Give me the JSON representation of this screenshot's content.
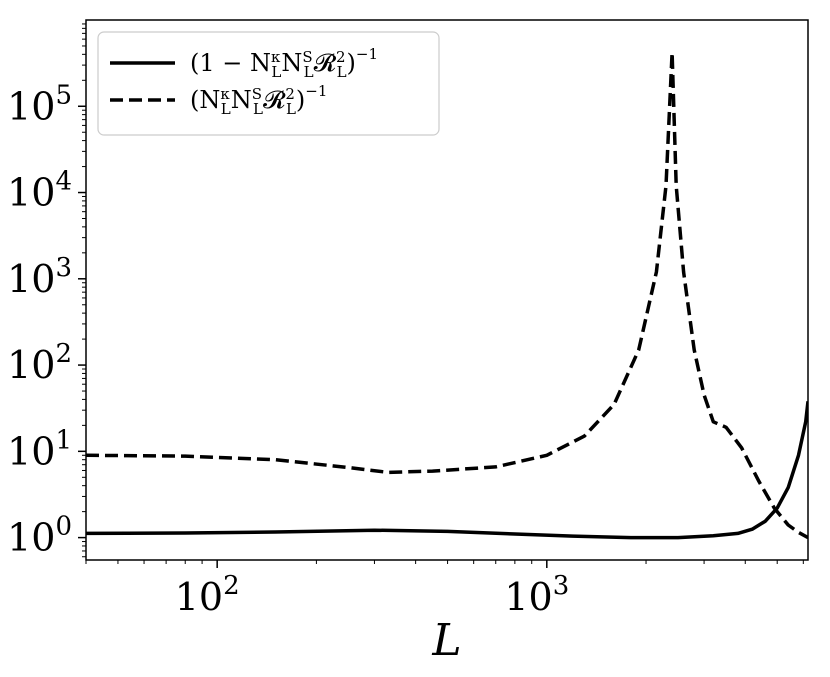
{
  "chart_data": {
    "type": "line",
    "xlabel": "L",
    "ylabel": "",
    "xscale": "log",
    "yscale": "log",
    "xlim": [
      40,
      6200
    ],
    "ylim": [
      0.55,
      1000000
    ],
    "grid": false,
    "legend_position": "top-left",
    "x_ticks": [
      {
        "value": 100,
        "base": "10",
        "exp": "2"
      },
      {
        "value": 1000,
        "base": "10",
        "exp": "3"
      }
    ],
    "y_ticks": [
      {
        "value": 1,
        "base": "10",
        "exp": "0"
      },
      {
        "value": 10,
        "base": "10",
        "exp": "1"
      },
      {
        "value": 100,
        "base": "10",
        "exp": "2"
      },
      {
        "value": 1000,
        "base": "10",
        "exp": "3"
      },
      {
        "value": 10000,
        "base": "10",
        "exp": "4"
      },
      {
        "value": 100000,
        "base": "10",
        "exp": "5"
      }
    ],
    "series": [
      {
        "name": "(1 − N_L^κ N_L^S 𝓡_L^2)^−1",
        "style": "solid",
        "color": "#000000",
        "points": [
          [
            40,
            1.12
          ],
          [
            80,
            1.13
          ],
          [
            150,
            1.16
          ],
          [
            300,
            1.22
          ],
          [
            500,
            1.18
          ],
          [
            800,
            1.1
          ],
          [
            1200,
            1.04
          ],
          [
            1800,
            1.0
          ],
          [
            2500,
            1.0
          ],
          [
            3200,
            1.05
          ],
          [
            3800,
            1.12
          ],
          [
            4200,
            1.25
          ],
          [
            4600,
            1.55
          ],
          [
            5000,
            2.2
          ],
          [
            5400,
            3.8
          ],
          [
            5800,
            9
          ],
          [
            6100,
            22
          ],
          [
            6200,
            38
          ]
        ]
      },
      {
        "name": "(N_L^κ N_L^S 𝓡_L^2)^−1",
        "style": "dashed",
        "color": "#000000",
        "points": [
          [
            40,
            9
          ],
          [
            80,
            8.8
          ],
          [
            150,
            8.0
          ],
          [
            250,
            6.5
          ],
          [
            330,
            5.7
          ],
          [
            450,
            5.9
          ],
          [
            700,
            6.6
          ],
          [
            1000,
            9
          ],
          [
            1300,
            15
          ],
          [
            1600,
            35
          ],
          [
            1900,
            150
          ],
          [
            2150,
            1200
          ],
          [
            2300,
            12000
          ],
          [
            2400,
            420000
          ],
          [
            2470,
            12000
          ],
          [
            2600,
            1200
          ],
          [
            2800,
            150
          ],
          [
            3000,
            45
          ],
          [
            3200,
            22
          ],
          [
            3500,
            19
          ],
          [
            3900,
            11
          ],
          [
            4400,
            4.5
          ],
          [
            4900,
            2.2
          ],
          [
            5400,
            1.4
          ],
          [
            5800,
            1.15
          ],
          [
            6200,
            1.0
          ]
        ]
      }
    ]
  }
}
